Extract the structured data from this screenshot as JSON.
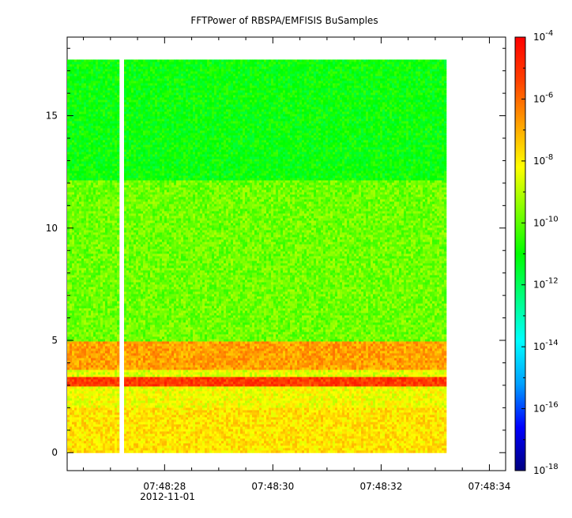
{
  "chart_data": {
    "type": "heatmap",
    "title": "FFTPower of RBSPA/EMFISIS  BuSamples",
    "x_axis": {
      "tick_labels": [
        "07:48:28",
        "07:48:30",
        "07:48:32",
        "07:48:34"
      ],
      "date_label": "2012-11-01",
      "range": [
        "07:48:26.2",
        "07:48:34.3"
      ]
    },
    "y_axis": {
      "tick_labels": [
        "0",
        "5",
        "10",
        "15"
      ],
      "ticks": [
        0,
        5,
        10,
        15
      ],
      "range": [
        -0.8,
        18.5
      ]
    },
    "colorbar": {
      "scale": "log",
      "range": [
        1e-18,
        0.0001
      ],
      "tick_labels": [
        {
          "base": "10",
          "exp": "-4"
        },
        {
          "base": "10",
          "exp": "-6"
        },
        {
          "base": "10",
          "exp": "-8"
        },
        {
          "base": "10",
          "exp": "-10"
        },
        {
          "base": "10",
          "exp": "-12"
        },
        {
          "base": "10",
          "exp": "-14"
        },
        {
          "base": "10",
          "exp": "-16"
        },
        {
          "base": "10",
          "exp": "-18"
        }
      ],
      "exponents": [
        -4,
        -6,
        -8,
        -10,
        -12,
        -14,
        -16,
        -18
      ]
    },
    "data_extent": {
      "time_start": "07:48:26.2",
      "time_end": "07:48:33.2",
      "y_min": 0,
      "y_max": 17.5,
      "gap_time": "07:48:27.2"
    },
    "bands": [
      {
        "y_from": 12.2,
        "y_to": 17.5,
        "log_power": -11.0
      },
      {
        "y_from": 5.0,
        "y_to": 12.2,
        "log_power": -9.8
      },
      {
        "y_from": 3.7,
        "y_to": 5.0,
        "log_power": -6.8
      },
      {
        "y_from": 3.4,
        "y_to": 3.7,
        "log_power": -8.5
      },
      {
        "y_from": 3.0,
        "y_to": 3.4,
        "log_power": -5.2
      },
      {
        "y_from": 2.0,
        "y_to": 3.0,
        "log_power": -8.3
      },
      {
        "y_from": 0.0,
        "y_to": 2.0,
        "log_power": -7.8
      }
    ],
    "colors": {
      "scale": [
        "#00007f",
        "#0000ff",
        "#00a0ff",
        "#00ffff",
        "#00ff80",
        "#00ff00",
        "#80ff00",
        "#ffff00",
        "#ffa000",
        "#ff4000",
        "#ff0000"
      ]
    }
  }
}
